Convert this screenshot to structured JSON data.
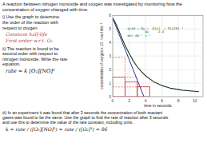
{
  "chart_data": {
    "type": "line",
    "title": "A reaction between nitrogen monoxide and oxygen was investigated by monitoring how the\nconcentration of oxygen changed with time.",
    "x_label": "time in seconds",
    "y_label": "concentration of oxygen  x 10⁻¹ mol dm⁻³",
    "xlim": [
      0,
      11
    ],
    "xticks": [
      0,
      2,
      4,
      6,
      8,
      10
    ],
    "ylim": [
      0,
      6
    ],
    "yticks": [
      0,
      1,
      2,
      3,
      4,
      5,
      6
    ],
    "grid": true,
    "series": [
      {
        "x": [
          0.0,
          0.3,
          0.6,
          1.0,
          1.5,
          2.0,
          2.5,
          3.0,
          3.5,
          4.0,
          5.0,
          6.0,
          7.0,
          8.5,
          10.5
        ],
        "values": [
          5.8,
          5.5,
          5.1,
          4.5,
          3.8,
          3.2,
          2.65,
          2.2,
          1.85,
          1.55,
          1.1,
          0.82,
          0.63,
          0.48,
          0.37
        ],
        "color": "#1a3a1a",
        "line_style": "solid"
      },
      {
        "x": [
          0.0,
          3.8
        ],
        "values": [
          5.8,
          0.0
        ],
        "color": "#1a1a7a",
        "line_style": "solid"
      }
    ],
    "half_life_lines": {
      "x": [
        1.5,
        3.0,
        4.5
      ],
      "values": [
        2.9,
        1.45,
        0.72
      ],
      "color": "#cc3333",
      "line_style": "dashed"
    },
    "half_life_boxes": {
      "x": [
        0,
        1.5,
        3.0
      ],
      "y": [
        0,
        0,
        0
      ],
      "width": [
        1.5,
        1.5,
        1.5
      ],
      "height": [
        1.45,
        1.1,
        0.75
      ],
      "color": "#cc3333"
    },
    "annotations": [
      {
        "text": "grad = Δy =  Δ[y]  = 5[x10]⁻¹\n         Δx     2.4\nmol dm⁻³ s⁻¹",
        "x": 1.8,
        "y": 5.2,
        "color": "#226622"
      }
    ],
    "questions": [
      {
        "text": "i) Use the graph to determine\nthe order of the reaction with\nrespect to oxygen.",
        "answers": [
          {
            "text": "Constant half-life",
            "color": "#c04040"
          },
          {
            "text": "First order w.r.t. O₂",
            "color": "#c04040"
          }
        ]
      },
      {
        "text": "ii) The reaction is found to be\nsecond order with respect to\nnitrogen monoxide. Write the rate\nequation.",
        "answers": [
          {
            "text": "rate = k [O₂][NO]²",
            "color": "#111111"
          }
        ]
      },
      {
        "text": "iii) In an experiment it was found that after 3 seconds the concentration of both reactant\ngases was found to be the same. Use the graph to find the rate of reaction after 3 seconds\nand use this to determine the value of the rate constant, including units.",
        "answers": [
          {
            "text": "k = rate / ([O₂][NO]²) = rate / ([O₂]³) ≈ 86",
            "color": "#111111"
          }
        ]
      }
    ]
  }
}
